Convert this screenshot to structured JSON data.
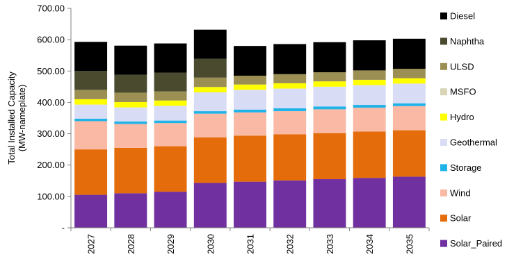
{
  "chart_data": {
    "type": "bar",
    "stacked": true,
    "categories": [
      "2027",
      "2028",
      "2029",
      "2030",
      "2031",
      "2032",
      "2033",
      "2034",
      "2035"
    ],
    "ylabel": "Total Installed Capacity",
    "ylabel_sub": "(MW-nameplate)",
    "ylim": [
      0,
      700
    ],
    "ytick_labels": [
      "-",
      "100.00",
      "200.00",
      "300.00",
      "400.00",
      "500.00",
      "600.00",
      "700.00"
    ],
    "grid": false,
    "legend_placement": "right",
    "series": [
      {
        "name": "Solar_Paired",
        "color": "#7030A0",
        "values": [
          105,
          110,
          115,
          143,
          147,
          151,
          155,
          159,
          163
        ]
      },
      {
        "name": "Solar",
        "color": "#E46C0A",
        "values": [
          145,
          145,
          145,
          145,
          147,
          147,
          147,
          148,
          148
        ]
      },
      {
        "name": "Wind",
        "color": "#FAB9A5",
        "values": [
          90,
          76,
          74,
          76,
          74,
          74,
          76,
          76,
          77
        ]
      },
      {
        "name": "Storage",
        "color": "#1FB3E8",
        "values": [
          8,
          8,
          8,
          8,
          9,
          9,
          9,
          9,
          9
        ]
      },
      {
        "name": "Geothermal",
        "color": "#D9DCF5",
        "values": [
          45,
          45,
          47,
          60,
          63,
          63,
          63,
          63,
          63
        ]
      },
      {
        "name": "Hydro",
        "color": "#FFFF00",
        "values": [
          17,
          17,
          17,
          17,
          17,
          17,
          17,
          17,
          17
        ]
      },
      {
        "name": "MSFO",
        "color": "#D8D6B6",
        "values": [
          0,
          0,
          0,
          0,
          0,
          0,
          0,
          0,
          0
        ]
      },
      {
        "name": "ULSD",
        "color": "#9C8F54",
        "values": [
          30,
          30,
          29,
          30,
          28,
          29,
          29,
          30,
          30
        ]
      },
      {
        "name": "Naphtha",
        "color": "#4A4A2E",
        "values": [
          60,
          57,
          60,
          60,
          0,
          0,
          0,
          0,
          0
        ]
      },
      {
        "name": "Diesel",
        "color": "#000000",
        "values": [
          93,
          93,
          93,
          93,
          95,
          96,
          96,
          96,
          96
        ]
      }
    ]
  }
}
